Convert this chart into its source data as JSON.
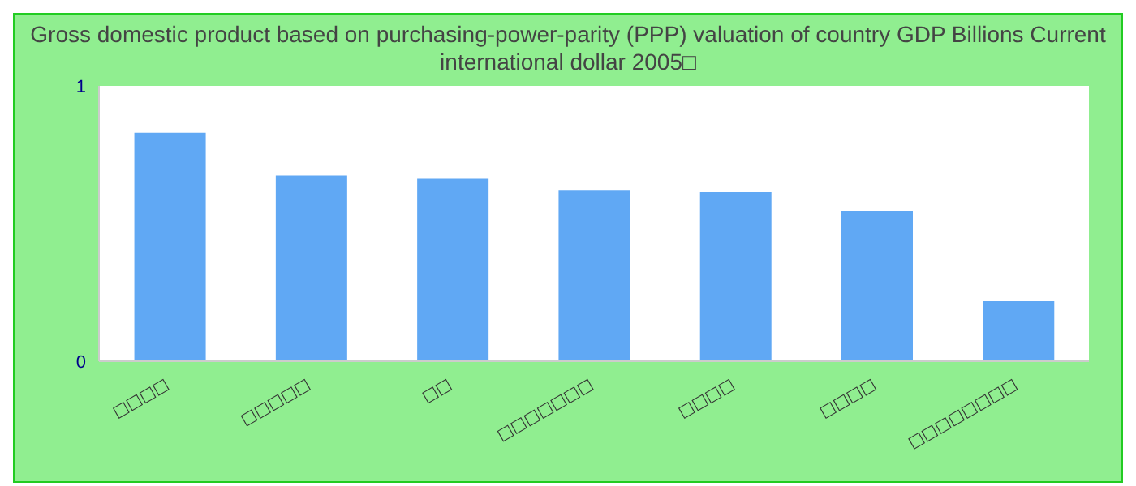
{
  "chart_data": {
    "type": "bar",
    "title": "Gross domestic product based on purchasing-power-parity (PPP) valuation of country GDP Billions Current international dollar 2005□",
    "categories": [
      "□□□□",
      "□□□□□",
      "□□",
      "□□□□□□□",
      "□□□□",
      "□□□□",
      "□□□□□□□□"
    ],
    "values": [
      0.83,
      0.675,
      0.663,
      0.62,
      0.615,
      0.545,
      0.22
    ],
    "color": "#60a8f4",
    "ylim": [
      0,
      1
    ],
    "yticks": [
      0,
      1
    ],
    "grid": false
  }
}
